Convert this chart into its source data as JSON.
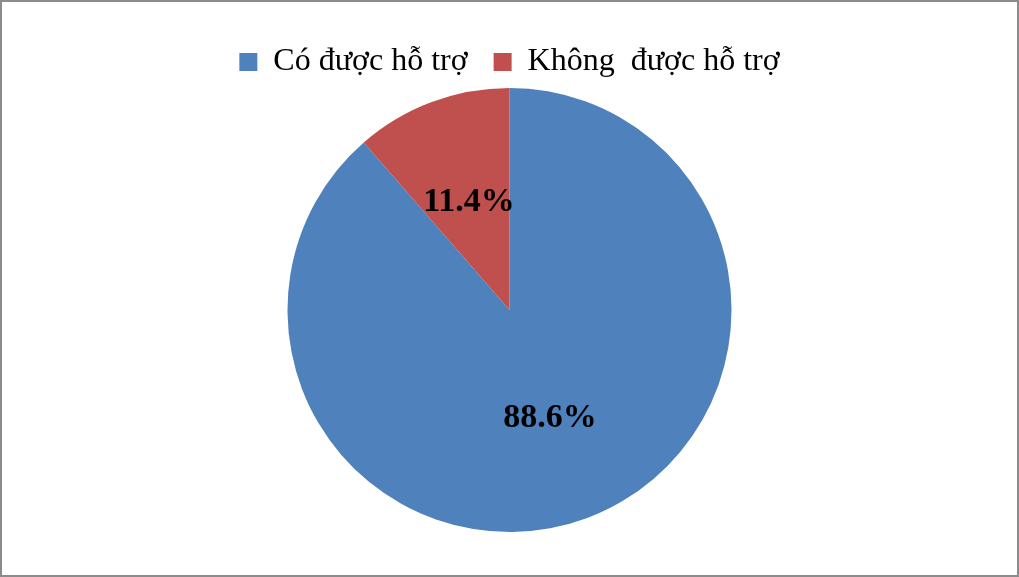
{
  "chart_data": {
    "type": "pie",
    "categories": [
      "Có được hỗ trợ",
      "Không  được hỗ trợ"
    ],
    "values": [
      88.6,
      11.4
    ],
    "colors": [
      "#4f81bd",
      "#c0504d"
    ],
    "value_labels": [
      "88.6%",
      "11.4%"
    ],
    "legend": "top"
  }
}
